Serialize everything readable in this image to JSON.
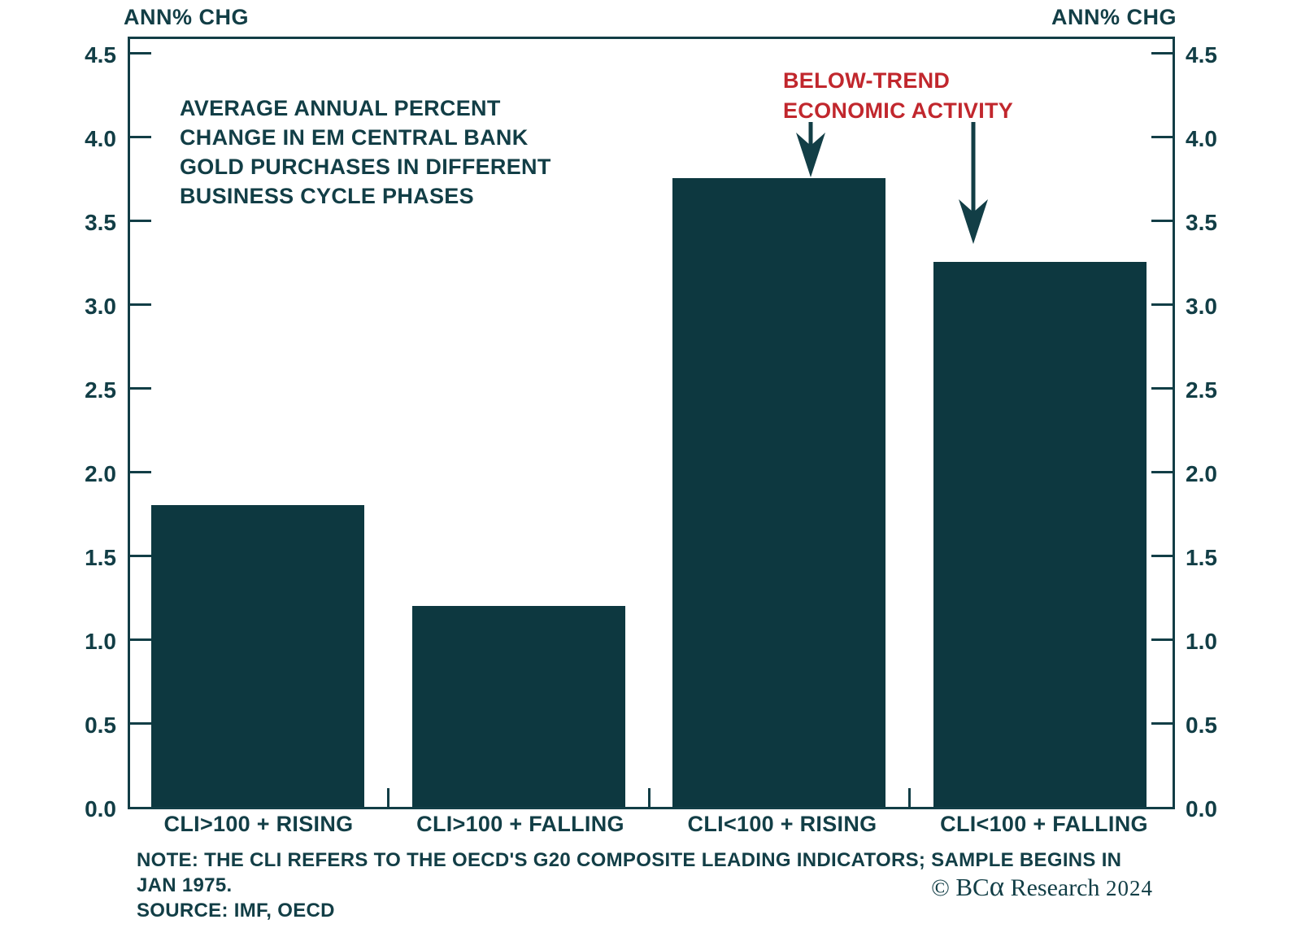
{
  "header": {
    "left_axis_header": "ANN% CHG",
    "right_axis_header": "ANN% CHG"
  },
  "annotations": {
    "title_lines": [
      "AVERAGE ANNUAL PERCENT",
      "CHANGE IN EM CENTRAL BANK",
      "GOLD PURCHASES IN DIFFERENT",
      "BUSINESS CYCLE PHASES"
    ],
    "below_trend_lines": [
      "BELOW-TREND",
      "ECONOMIC ACTIVITY"
    ],
    "below_trend_color": "#c1272d"
  },
  "footer": {
    "note_lines": [
      "NOTE: THE CLI REFERS TO THE OECD'S G20 COMPOSITE LEADING INDICATORS; SAMPLE BEGINS IN",
      "JAN 1975."
    ],
    "source_line": "SOURCE: IMF, OECD",
    "logo": {
      "copyright": "© ",
      "brand": "BC",
      "alpha": "α",
      "name": " Research ",
      "year": "2024"
    }
  },
  "chart_data": {
    "type": "bar",
    "title": "AVERAGE ANNUAL PERCENT CHANGE IN EM CENTRAL BANK GOLD PURCHASES IN DIFFERENT BUSINESS CYCLE PHASES",
    "categories": [
      "CLI>100 + RISING",
      "CLI>100 + FALLING",
      "CLI<100 + RISING",
      "CLI<100 + FALLING"
    ],
    "values": [
      1.8,
      1.2,
      3.75,
      3.25
    ],
    "ylabel_left": "ANN% CHG",
    "ylabel_right": "ANN% CHG",
    "ylim": [
      0,
      4.5
    ],
    "ytick_step": 0.5,
    "ytick_labels": [
      "0.0",
      "0.5",
      "1.0",
      "1.5",
      "2.0",
      "2.5",
      "3.0",
      "3.5",
      "4.0",
      "4.5"
    ],
    "grid": false,
    "legend": "none",
    "bar_color": "#0d3840",
    "annotation": {
      "text": "BELOW-TREND ECONOMIC ACTIVITY",
      "color": "#c1272d",
      "points_to": [
        "CLI<100 + RISING",
        "CLI<100 + FALLING"
      ]
    },
    "note": "NOTE: THE CLI REFERS TO THE OECD'S G20 COMPOSITE LEADING INDICATORS; SAMPLE BEGINS IN JAN 1975.",
    "source": "IMF, OECD",
    "credit": "© BCα Research 2024"
  }
}
